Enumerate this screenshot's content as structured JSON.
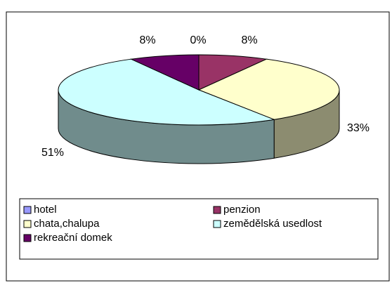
{
  "chart_data": {
    "type": "pie3d",
    "categories": [
      "hotel",
      "penzion",
      "chata,chalupa",
      "zemědělská usedlost",
      "rekreační domek"
    ],
    "values": [
      0,
      8,
      33,
      51,
      8
    ],
    "value_labels": [
      "0%",
      "8%",
      "33%",
      "51%",
      "8%"
    ],
    "colors": [
      "#9999ff",
      "#993366",
      "#ffffcc",
      "#ccffff",
      "#660066"
    ],
    "legend": "bottom"
  }
}
